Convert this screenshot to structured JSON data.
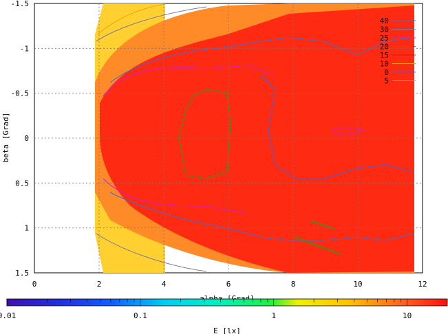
{
  "chart_data": {
    "type": "heatmap",
    "xlabel": "alpha [Grad]",
    "ylabel": "beta [Grad]",
    "xlim": [
      0,
      12
    ],
    "ylim": [
      1.5,
      -1.5
    ],
    "x_ticks": [
      "0",
      "2",
      "4",
      "6",
      "8",
      "10",
      "12"
    ],
    "y_ticks": [
      "-1.5",
      "-1",
      "-0.5",
      "0",
      "0.5",
      "1",
      "1.5"
    ],
    "grid": true,
    "legend_position": "top-right",
    "contour_levels": [
      {
        "label": "40",
        "color": "#3b6fd8"
      },
      {
        "label": "30",
        "color": "#7a7aa0"
      },
      {
        "label": "25",
        "color": "#d020d0"
      },
      {
        "label": "20",
        "color": "#20a020"
      },
      {
        "label": "15",
        "color": "#e01010"
      },
      {
        "label": "10",
        "color": "#f0a000"
      },
      {
        "label": "0",
        "color": "#4060e0"
      },
      {
        "label": "5",
        "color": "#e0b000"
      }
    ],
    "colorbar": {
      "label": "E [lx]",
      "scale": "log",
      "range": [
        0.01,
        20
      ],
      "ticks": [
        "0.01",
        "0.1",
        "1",
        "10"
      ]
    },
    "domain_alpha_range": [
      1.9,
      11.7
    ]
  }
}
